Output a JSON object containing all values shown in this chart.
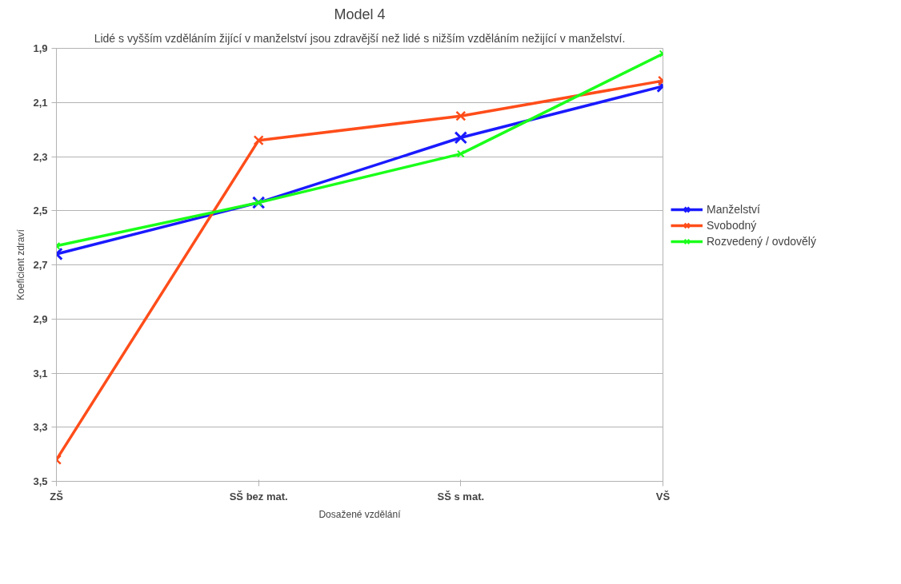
{
  "chart_data": {
    "type": "line",
    "title": "Model 4",
    "subtitle": "Lidé s vyšším vzděláním žijící v manželství jsou zdravější než lidé s nižším vzděláním nežijící v manželství.",
    "xlabel": "Dosažené vzdělání",
    "ylabel": "Koeficient zdraví",
    "categories": [
      "ZŠ",
      "SŠ bez mat.",
      "SŠ s mat.",
      "VŠ"
    ],
    "series": [
      {
        "name": "Manželství",
        "color": "#1a1aff",
        "values": [
          2.66,
          2.47,
          2.23,
          2.04
        ]
      },
      {
        "name": "Svobodný",
        "color": "#ff4d1a",
        "values": [
          3.42,
          2.24,
          2.15,
          2.02
        ]
      },
      {
        "name": "Rozvedený / ovdovělý",
        "color": "#1aff1a",
        "values": [
          2.63,
          2.47,
          2.29,
          1.92
        ]
      }
    ],
    "ylim": [
      3.5,
      1.9
    ],
    "yticks": [
      {
        "value": 1.9,
        "label": "1,9"
      },
      {
        "value": 2.1,
        "label": "2,1"
      },
      {
        "value": 2.3,
        "label": "2,3"
      },
      {
        "value": 2.5,
        "label": "2,5"
      },
      {
        "value": 2.7,
        "label": "2,7"
      },
      {
        "value": 2.9,
        "label": "2,9"
      },
      {
        "value": 3.1,
        "label": "3,1"
      },
      {
        "value": 3.3,
        "label": "3,3"
      },
      {
        "value": 3.5,
        "label": "3,5"
      }
    ],
    "grid": "y",
    "legend": "right",
    "marker": "cross",
    "line_style": "solid"
  }
}
